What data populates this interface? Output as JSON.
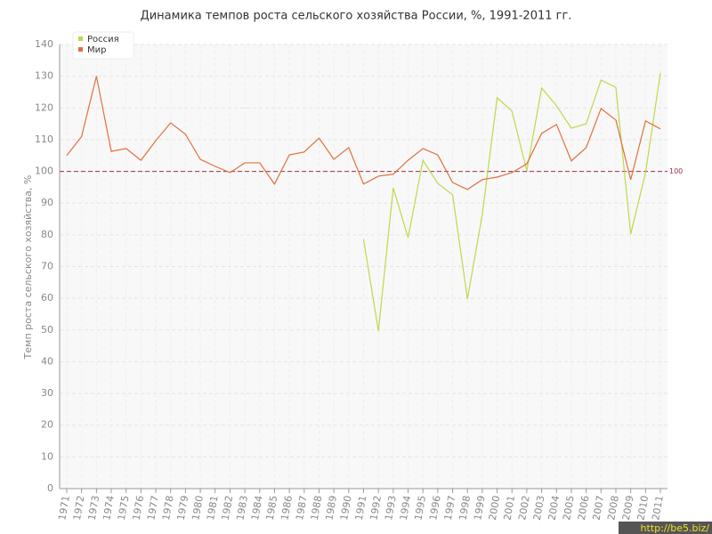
{
  "chart_data": {
    "type": "line",
    "title": "Динамика темпов роста сельского хозяйства России, %, 1991-2011 гг.",
    "y_label": "Темп роста сельского хозяйства, %",
    "watermark": "http://be5.biz/",
    "x": [
      1971,
      1972,
      1973,
      1974,
      1975,
      1976,
      1977,
      1978,
      1979,
      1980,
      1981,
      1982,
      1983,
      1984,
      1985,
      1986,
      1987,
      1988,
      1989,
      1990,
      1991,
      1992,
      1993,
      1994,
      1995,
      1996,
      1997,
      1998,
      1999,
      2000,
      2001,
      2002,
      2003,
      2004,
      2005,
      2006,
      2007,
      2008,
      2009,
      2010,
      2011
    ],
    "xlim": [
      1971,
      2011
    ],
    "series": [
      {
        "name": "Россия",
        "color": "#bcd94a",
        "values": [
          null,
          null,
          null,
          null,
          null,
          null,
          null,
          null,
          null,
          null,
          null,
          null,
          null,
          null,
          null,
          null,
          null,
          null,
          null,
          null,
          78.6,
          49.7,
          94.8,
          79.1,
          103.5,
          96.2,
          92.6,
          59.8,
          86.4,
          123.2,
          119,
          100.2,
          126.3,
          120.7,
          113.6,
          115,
          128.8,
          126.5,
          80.2,
          99.6,
          131
        ]
      },
      {
        "name": "Мир",
        "color": "#e0703c",
        "values": [
          105,
          111,
          130,
          106.3,
          107.2,
          103.5,
          109.7,
          115.3,
          111.7,
          103.8,
          101.6,
          99.6,
          102.7,
          102.7,
          96,
          105.2,
          106.1,
          110.5,
          103.8,
          107.5,
          96,
          98.5,
          99.1,
          103.5,
          107.2,
          105.2,
          96.5,
          94.3,
          97.4,
          98.2,
          99.6,
          102.4,
          112,
          114.8,
          103.3,
          107.5,
          119.8,
          116.2,
          97.4,
          115.9,
          113.4
        ]
      }
    ],
    "ylim": [
      0,
      140
    ],
    "yticks": [
      0,
      10,
      20,
      30,
      40,
      50,
      60,
      70,
      80,
      90,
      100,
      110,
      120,
      130,
      140
    ],
    "reference_line": {
      "value": 100,
      "color": "#a03040"
    },
    "grid": true,
    "legend": "top-left"
  }
}
